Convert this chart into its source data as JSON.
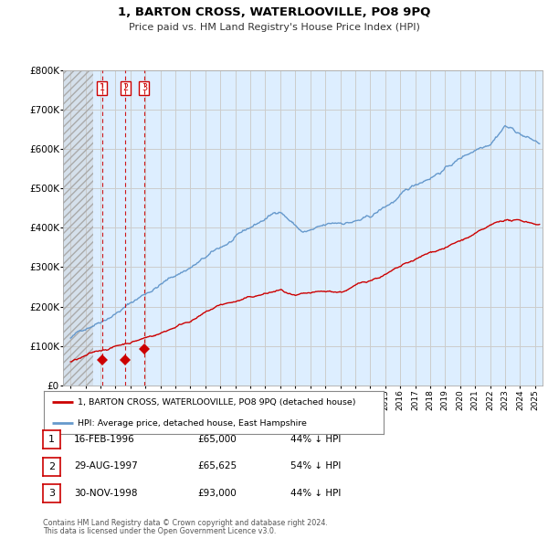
{
  "title": "1, BARTON CROSS, WATERLOOVILLE, PO8 9PQ",
  "subtitle": "Price paid vs. HM Land Registry's House Price Index (HPI)",
  "legend_line1": "1, BARTON CROSS, WATERLOOVILLE, PO8 9PQ (detached house)",
  "legend_line2": "HPI: Average price, detached house, East Hampshire",
  "footer1": "Contains HM Land Registry data © Crown copyright and database right 2024.",
  "footer2": "This data is licensed under the Open Government Licence v3.0.",
  "transactions": [
    {
      "num": 1,
      "date": "16-FEB-1996",
      "price": 65000,
      "pct": "44%",
      "dir": "↓",
      "x_year": 1996.12
    },
    {
      "num": 2,
      "date": "29-AUG-1997",
      "price": 65625,
      "pct": "54%",
      "dir": "↓",
      "x_year": 1997.66
    },
    {
      "num": 3,
      "date": "30-NOV-1998",
      "price": 93000,
      "pct": "44%",
      "dir": "↓",
      "x_year": 1998.92
    }
  ],
  "hatch_end_year": 1995.5,
  "red_color": "#cc0000",
  "blue_color": "#6699cc",
  "grid_color": "#cccccc",
  "plot_bg": "#ddeeff",
  "fig_bg": "#ffffff",
  "ylim": [
    0,
    800000
  ],
  "xlim_min": 1993.5,
  "xlim_max": 2025.5
}
